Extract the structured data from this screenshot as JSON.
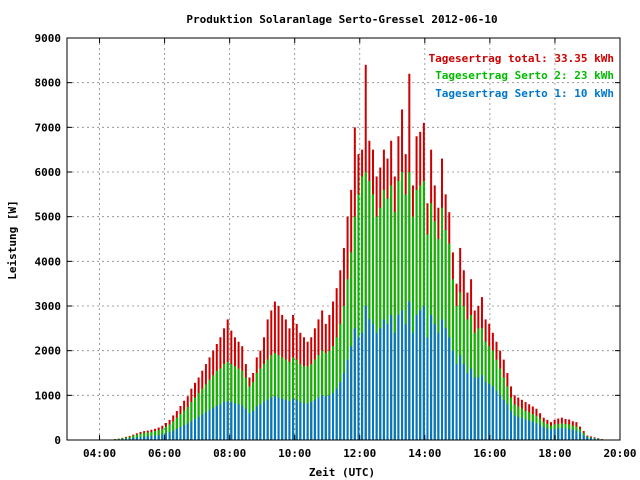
{
  "chart_data": {
    "type": "bar",
    "stacked": true,
    "title": "Produktion Solaranlage Serto-Gressel 2012-06-10",
    "xlabel": "Zeit (UTC)",
    "ylabel": "Leistung [W]",
    "ylim": [
      0,
      9000
    ],
    "yticks": [
      0,
      1000,
      2000,
      3000,
      4000,
      5000,
      6000,
      7000,
      8000,
      9000
    ],
    "xlim_hours": [
      3,
      20
    ],
    "xticks": [
      "04:00",
      "06:00",
      "08:00",
      "10:00",
      "12:00",
      "14:00",
      "16:00",
      "18:00",
      "20:00"
    ],
    "grid": true,
    "legend_position": "top-right",
    "legend": [
      {
        "label": "Tagesertrag total: 33.35 kWh",
        "color": "#cc0000"
      },
      {
        "label": "Tagesertrag Serto 2: 23 kWh",
        "color": "#00bb00"
      },
      {
        "label": "Tagesertrag Serto 1: 10 kWh",
        "color": "#0077cc"
      }
    ],
    "colors": {
      "total": "#cc0000",
      "serto2": "#00bb00",
      "serto1": "#0077cc"
    },
    "x_start_hour": 3.92,
    "interval_minutes": 6.7,
    "total": [
      0,
      0,
      0,
      0,
      10,
      20,
      30,
      50,
      70,
      90,
      120,
      150,
      180,
      200,
      210,
      230,
      250,
      280,
      320,
      380,
      450,
      550,
      650,
      760,
      880,
      980,
      1150,
      1280,
      1400,
      1550,
      1700,
      1850,
      2000,
      2150,
      2300,
      2500,
      2700,
      2450,
      2300,
      2200,
      2100,
      1700,
      1400,
      1500,
      1850,
      2000,
      2300,
      2700,
      2900,
      3100,
      3000,
      2800,
      2700,
      2500,
      2800,
      2600,
      2400,
      2300,
      2200,
      2300,
      2500,
      2700,
      2900,
      2600,
      2800,
      3100,
      3400,
      3800,
      4300,
      5000,
      5600,
      7000,
      6400,
      6500,
      8400,
      6700,
      6500,
      5900,
      6100,
      6500,
      6300,
      6700,
      5900,
      6800,
      7400,
      6400,
      8200,
      5700,
      6800,
      6900,
      7100,
      5300,
      6500,
      5700,
      5200,
      6300,
      5500,
      5100,
      4200,
      3500,
      4300,
      3800,
      3300,
      3600,
      2900,
      3000,
      3200,
      2700,
      2600,
      2400,
      2200,
      2000,
      1800,
      1500,
      1200,
      1000,
      950,
      900,
      850,
      800,
      750,
      700,
      600,
      500,
      450,
      400,
      450,
      480,
      500,
      470,
      460,
      420,
      400,
      300,
      200,
      100,
      80,
      60,
      40,
      20,
      10,
      0,
      0,
      0
    ],
    "serto2": [
      0,
      0,
      0,
      0,
      8,
      15,
      25,
      40,
      55,
      70,
      100,
      120,
      140,
      160,
      170,
      180,
      200,
      220,
      250,
      300,
      350,
      420,
      500,
      580,
      660,
      740,
      850,
      950,
      1050,
      1150,
      1250,
      1350,
      1450,
      1550,
      1600,
      1700,
      1750,
      1700,
      1650,
      1600,
      1550,
      1400,
      1200,
      1300,
      1500,
      1600,
      1700,
      1800,
      1900,
      1950,
      1900,
      1850,
      1800,
      1750,
      1850,
      1800,
      1700,
      1650,
      1650,
      1700,
      1800,
      1900,
      2000,
      1950,
      2000,
      2100,
      2300,
      2600,
      3000,
      3600,
      4200,
      5000,
      5500,
      5900,
      6000,
      5800,
      5500,
      5000,
      5200,
      5600,
      5400,
      5700,
      5100,
      5800,
      6000,
      5500,
      6000,
      5000,
      5600,
      5700,
      5800,
      4600,
      5300,
      4900,
      4500,
      5200,
      4700,
      4400,
      3600,
      3000,
      3300,
      3000,
      2700,
      2800,
      2400,
      2500,
      2500,
      2200,
      2100,
      2000,
      1800,
      1600,
      1400,
      1200,
      950,
      800,
      750,
      700,
      650,
      620,
      580,
      540,
      480,
      400,
      360,
      320,
      350,
      360,
      370,
      360,
      350,
      320,
      300,
      240,
      160,
      80,
      60,
      45,
      30,
      15,
      8,
      0,
      0,
      0
    ],
    "serto1": [
      0,
      0,
      0,
      0,
      4,
      8,
      12,
      20,
      28,
      35,
      50,
      60,
      70,
      80,
      85,
      90,
      100,
      110,
      125,
      150,
      175,
      210,
      250,
      290,
      330,
      370,
      420,
      470,
      520,
      570,
      620,
      670,
      720,
      770,
      800,
      850,
      870,
      850,
      820,
      800,
      770,
      700,
      600,
      650,
      750,
      800,
      850,
      900,
      950,
      980,
      950,
      920,
      900,
      870,
      920,
      900,
      850,
      820,
      820,
      850,
      900,
      950,
      1000,
      980,
      1000,
      1050,
      1150,
      1300,
      1500,
      1800,
      2100,
      2500,
      2300,
      2400,
      3000,
      2700,
      2600,
      2400,
      2500,
      2700,
      2600,
      2800,
      2400,
      2800,
      2900,
      2600,
      3100,
      2400,
      2800,
      2900,
      3000,
      2300,
      2800,
      2600,
      2400,
      2700,
      2500,
      2300,
      2000,
      1700,
      1900,
      1700,
      1500,
      1600,
      1400,
      1400,
      1450,
      1300,
      1250,
      1200,
      1100,
      1000,
      900,
      800,
      650,
      550,
      520,
      490,
      460,
      440,
      410,
      380,
      340,
      290,
      260,
      230,
      250,
      260,
      270,
      260,
      250,
      230,
      210,
      170,
      110,
      60,
      45,
      30,
      20,
      10,
      5,
      0,
      0,
      0
    ]
  }
}
